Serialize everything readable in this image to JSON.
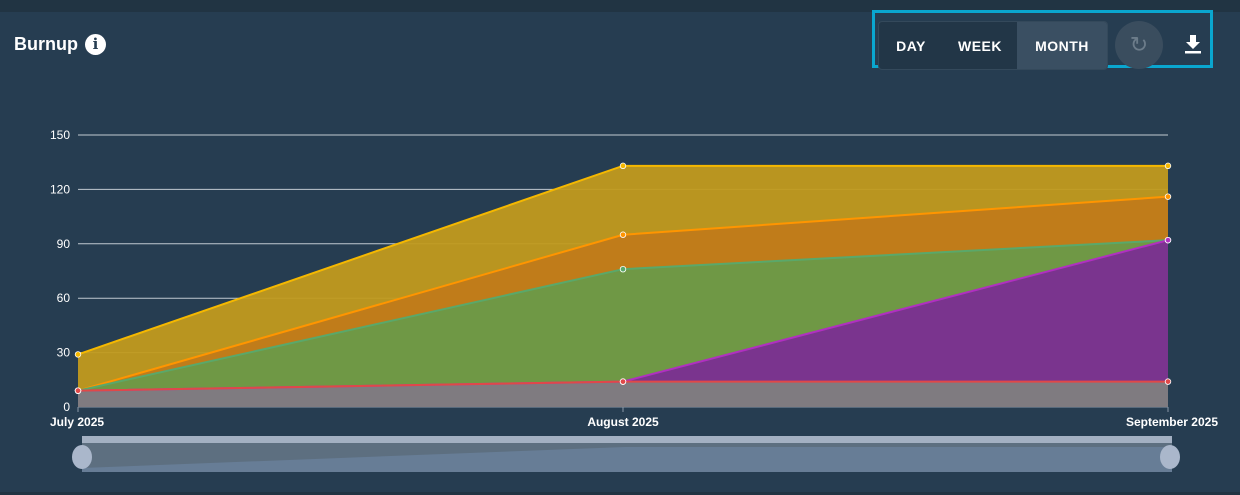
{
  "header": {
    "title": "Burnup",
    "info_icon": "info-icon"
  },
  "toolbar": {
    "day": "DAY",
    "week": "WEEK",
    "month": "MONTH",
    "active": "MONTH",
    "refresh_icon": "refresh-icon",
    "download_icon": "download-icon"
  },
  "chart_data": {
    "type": "area",
    "title": "Burnup",
    "categories": [
      "July 2025",
      "August 2025",
      "September 2025"
    ],
    "ylim": [
      0,
      150
    ],
    "yticks": [
      "0",
      "30",
      "60",
      "90",
      "120",
      "150"
    ],
    "grid": true,
    "series": [
      {
        "values": [
          29,
          133,
          133
        ],
        "color": "#f5b800",
        "fill": "#c19a1e"
      },
      {
        "values": [
          9,
          95,
          116
        ],
        "color": "#ff9500",
        "fill": "#c07a1a"
      },
      {
        "values": [
          9,
          76,
          92
        ],
        "color": "#5aa86a",
        "fill": "#6a9a48"
      },
      {
        "values": [
          9,
          14,
          92
        ],
        "color": "#b030c0",
        "fill": "#7a2e92"
      },
      {
        "values": [
          9,
          14,
          14
        ],
        "color": "#e04848",
        "fill": "#7f7f7f"
      }
    ]
  }
}
